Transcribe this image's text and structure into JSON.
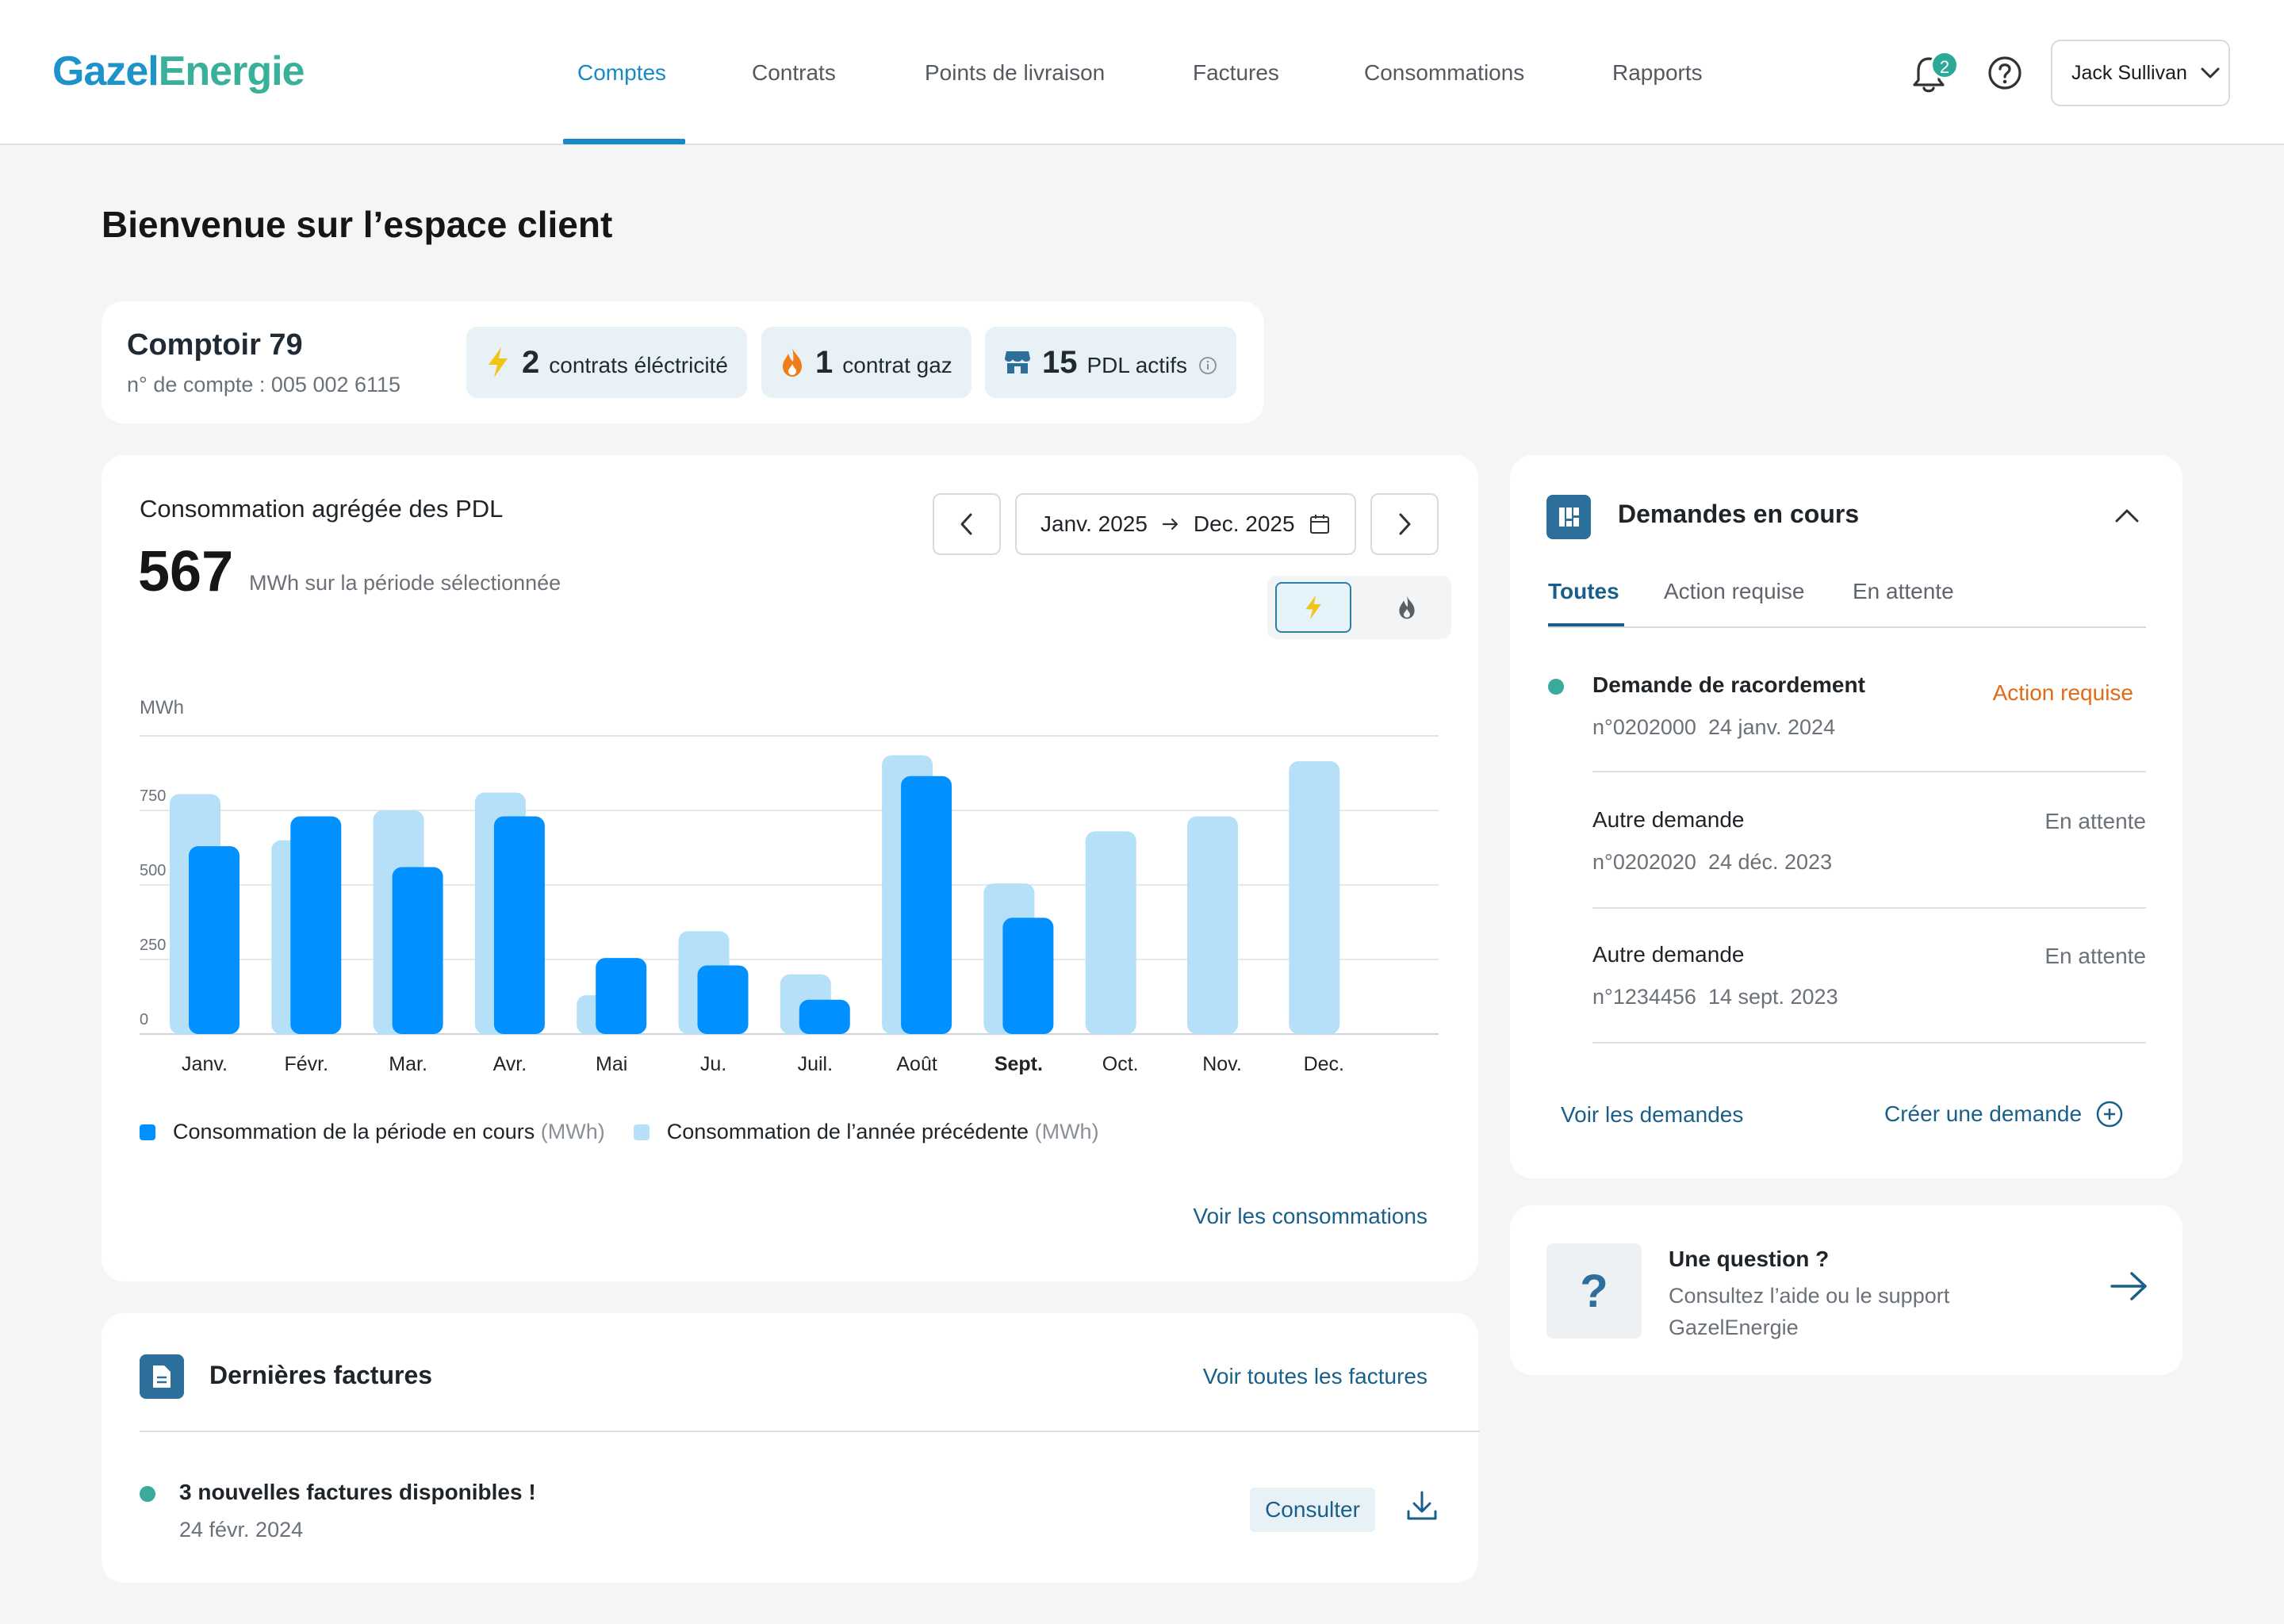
{
  "header": {
    "logo_part1": "Gazel",
    "logo_part2": "Energie",
    "nav": [
      "Comptes",
      "Contrats",
      "Points de livraison",
      "Factures",
      "Consommations",
      "Rapports"
    ],
    "active_nav": "Comptes",
    "notification_count": "2",
    "user_name": "Jack Sullivan"
  },
  "page_title": "Bienvenue sur l’espace client",
  "account": {
    "name": "Comptoir 79",
    "number": "n° de compte : 005 002 6115",
    "stats": [
      {
        "value": "2",
        "label": "contrats éléctricité",
        "icon": "lightning-icon"
      },
      {
        "value": "1",
        "label": "contrat gaz",
        "icon": "flame-icon"
      },
      {
        "value": "15",
        "label": "PDL actifs",
        "icon": "store-icon"
      }
    ]
  },
  "consumption": {
    "title": "Consommation agrégée des PDL",
    "total": "567",
    "total_unit": "MWh sur la période sélectionnée",
    "date_from": "Janv. 2025",
    "date_to": "Dec. 2025",
    "link": "Voir les consommations",
    "legend_current": "Consommation de la période en cours",
    "legend_previous": "Consommation de l’année précédente",
    "legend_unit": "(MWh)"
  },
  "chart_data": {
    "type": "bar",
    "ylabel": "MWh",
    "yticks": [
      0,
      250,
      500,
      750
    ],
    "ylim": [
      0,
      1000
    ],
    "categories": [
      "Janv.",
      "Févr.",
      "Mar.",
      "Avr.",
      "Mai",
      "Ju.",
      "Juil.",
      "Août",
      "Sept.",
      "Oct.",
      "Nov.",
      "Dec."
    ],
    "highlight_category": "Sept.",
    "series": [
      {
        "name": "Consommation de la période en cours",
        "color": "#0090ff",
        "values": [
          630,
          730,
          560,
          730,
          255,
          230,
          115,
          865,
          390,
          null,
          null,
          null
        ]
      },
      {
        "name": "Consommation de l’année précédente",
        "color": "#b6e0f7",
        "values": [
          805,
          650,
          750,
          810,
          130,
          345,
          200,
          935,
          505,
          680,
          730,
          915
        ]
      }
    ],
    "grid": true
  },
  "demandes": {
    "title": "Demandes en cours",
    "tabs": [
      "Toutes",
      "Action requise",
      "En attente"
    ],
    "items": [
      {
        "title": "Demande de racordement",
        "number": "n°0202000",
        "date": "24 janv. 2024",
        "status": "Action requise",
        "bold": true
      },
      {
        "title": "Autre demande",
        "number": "n°0202020",
        "date": "24 déc. 2023",
        "status": "En attente",
        "bold": false
      },
      {
        "title": "Autre demande",
        "number": "n°1234456",
        "date": "14 sept. 2023",
        "status": "En attente",
        "bold": false
      }
    ],
    "link_view": "Voir les demandes",
    "link_create": "Créer une demande"
  },
  "help": {
    "title": "Une question ?",
    "subtitle": "Consultez l’aide ou le support GazelEnergie"
  },
  "factures": {
    "title": "Dernières factures",
    "link": "Voir toutes les factures",
    "message": "3 nouvelles factures disponibles !",
    "date": "24 févr. 2024",
    "consult": "Consulter"
  }
}
